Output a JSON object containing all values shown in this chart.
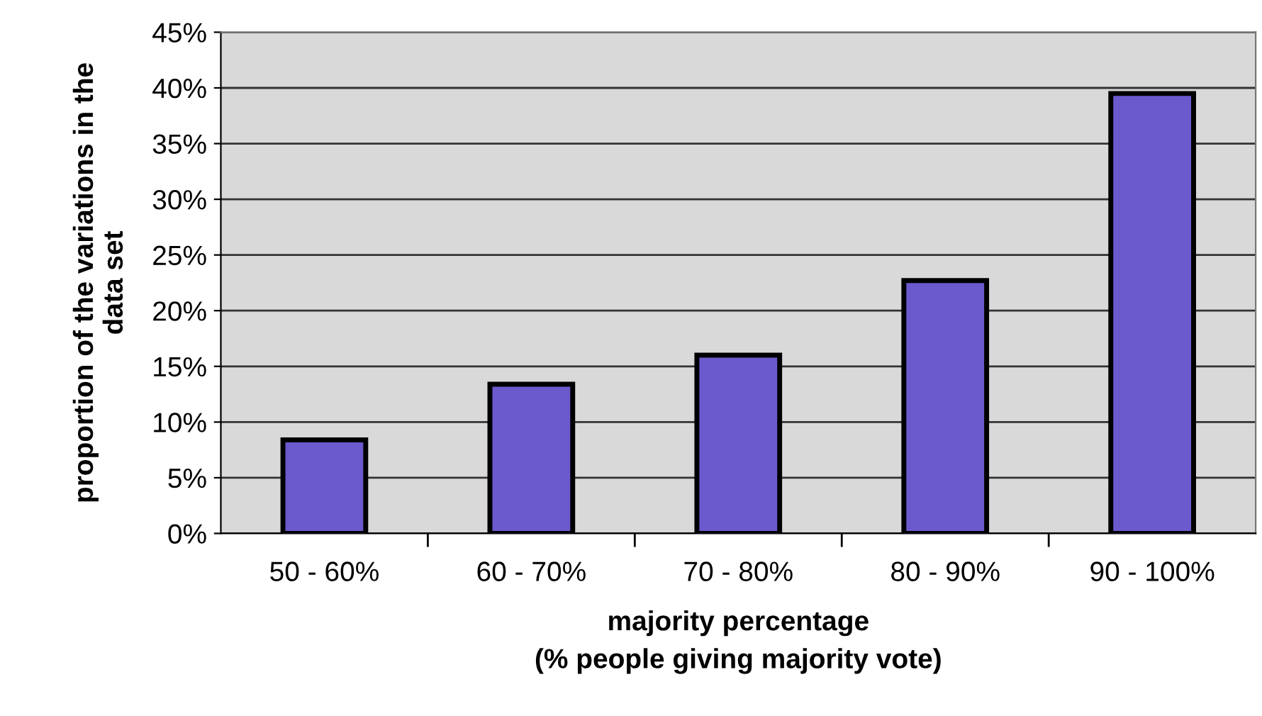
{
  "chart_data": {
    "type": "bar",
    "xlabel": "majority percentage\n(% people giving majority vote)",
    "ylabel": "proportion of the variations in the\ndata set",
    "categories": [
      "50 - 60%",
      "60 - 70%",
      "70 - 80%",
      "80 - 90%",
      "90 - 100%"
    ],
    "values": [
      8.4,
      13.4,
      16.0,
      22.7,
      39.5
    ],
    "color": "#6a5acd",
    "ylim": [
      0,
      45
    ],
    "yticks": [
      {
        "value": 0,
        "label": "0%"
      },
      {
        "value": 5,
        "label": "5%"
      },
      {
        "value": 10,
        "label": "10%"
      },
      {
        "value": 15,
        "label": "15%"
      },
      {
        "value": 20,
        "label": "20%"
      },
      {
        "value": 25,
        "label": "25%"
      },
      {
        "value": 30,
        "label": "30%"
      },
      {
        "value": 35,
        "label": "35%"
      },
      {
        "value": 40,
        "label": "40%"
      },
      {
        "value": 45,
        "label": "45%"
      }
    ],
    "grid": "y",
    "legend": false
  }
}
